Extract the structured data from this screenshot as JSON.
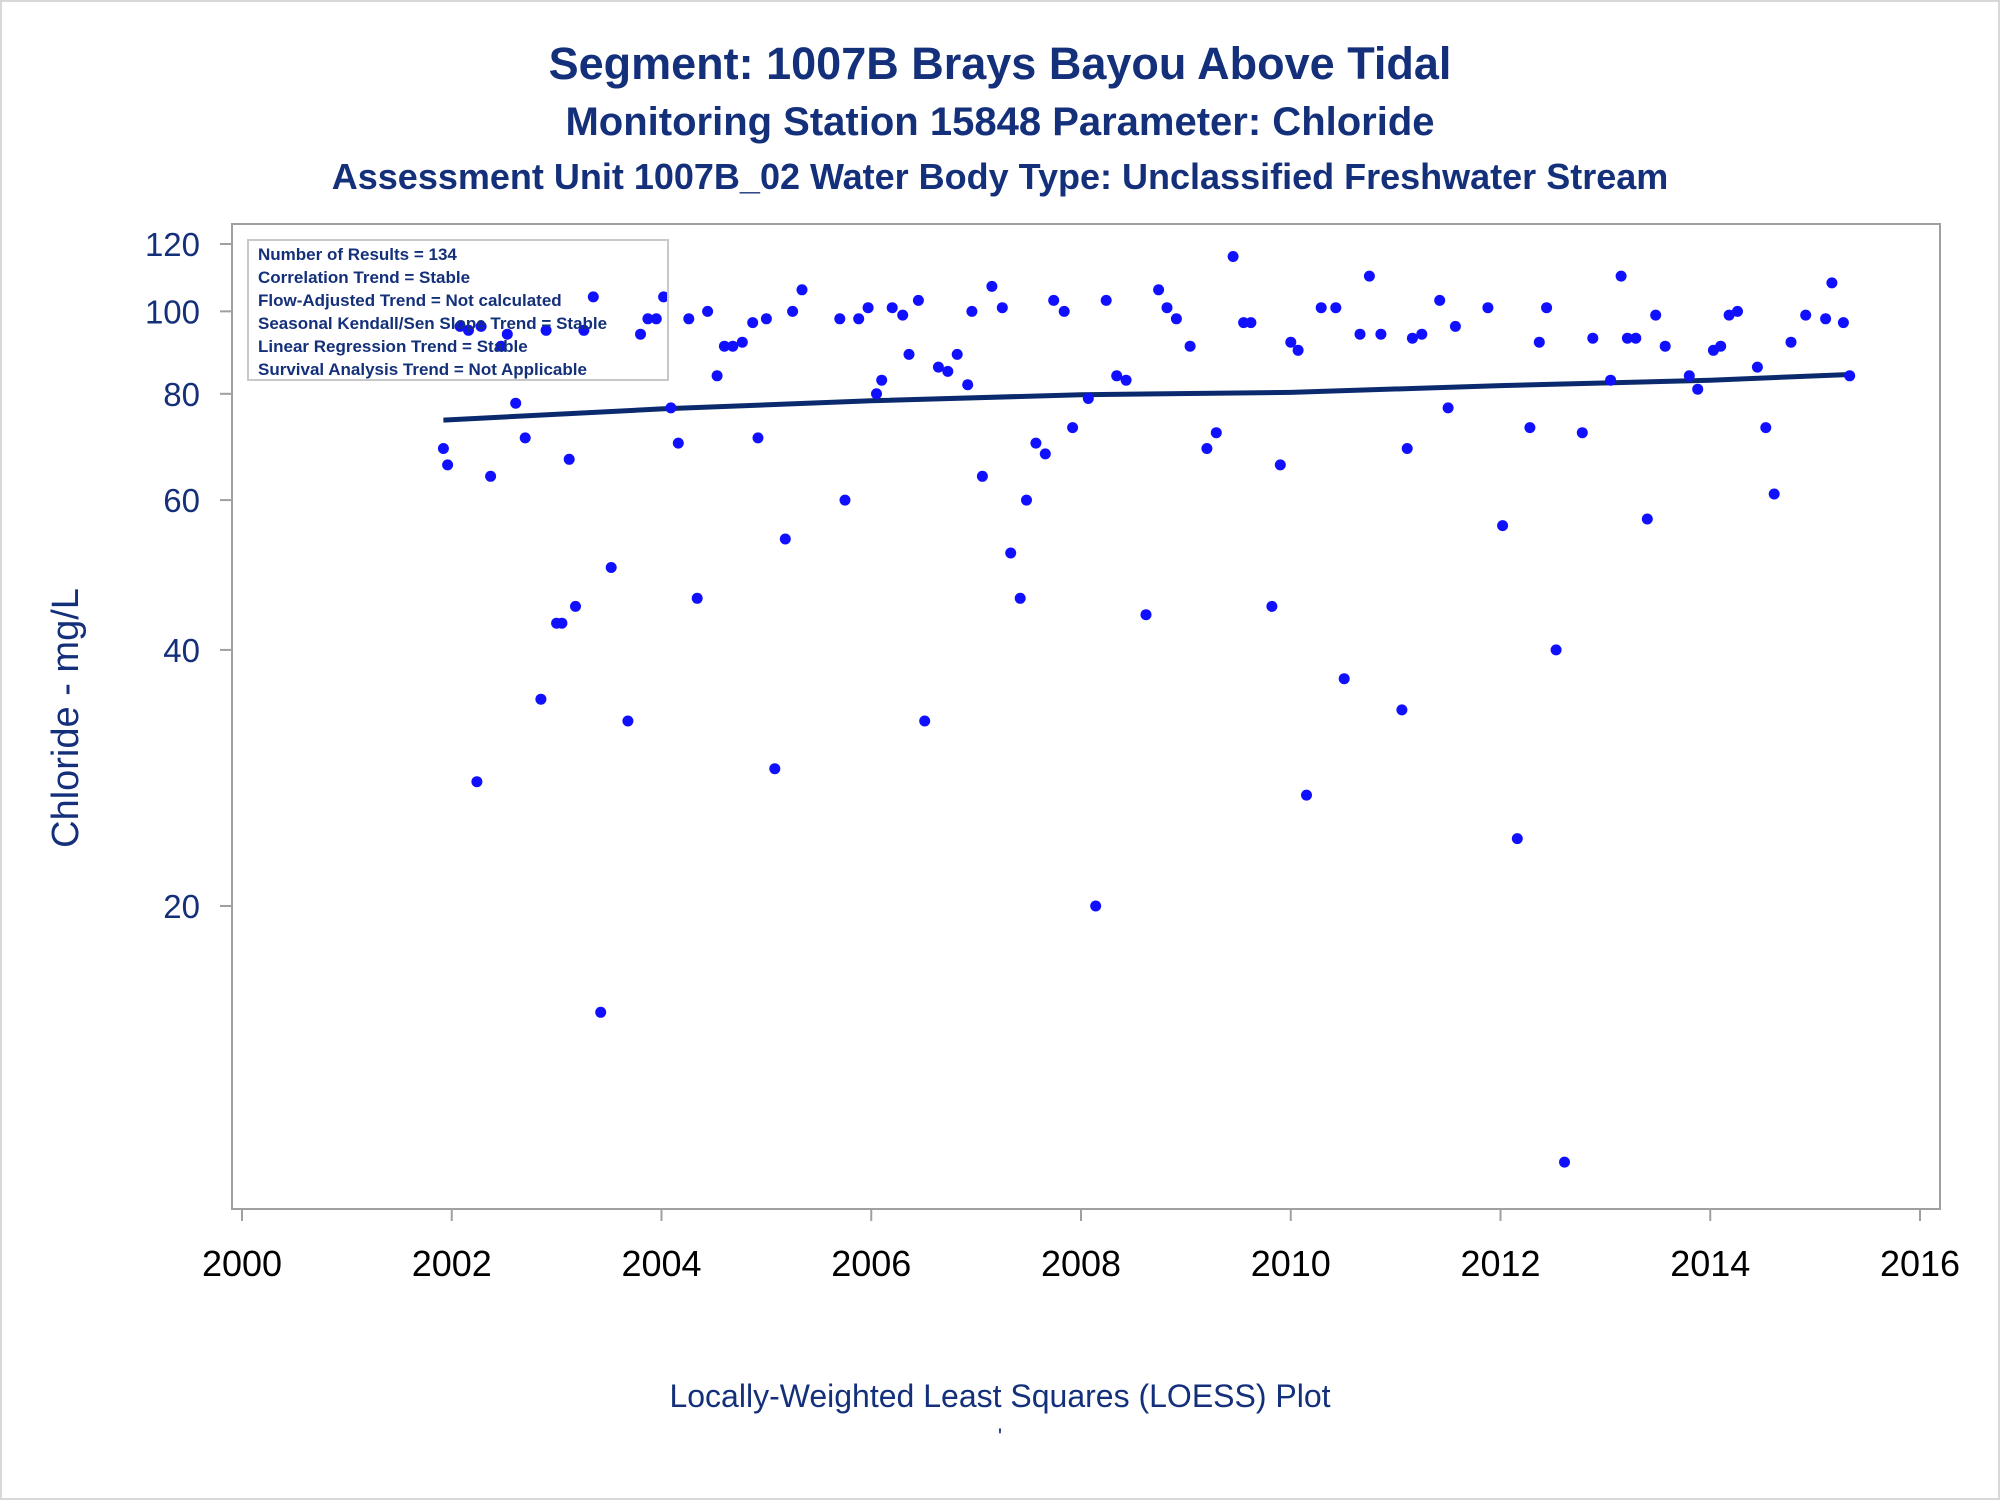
{
  "titles": {
    "line1": "Segment: 1007B  Brays Bayou Above Tidal",
    "line2": "Monitoring Station 15848 Parameter: Chloride",
    "line3": "Assessment Unit 1007B_02   Water Body Type: Unclassified Freshwater Stream"
  },
  "footer": "Locally-Weighted Least Squares (LOESS) Plot",
  "footer_mark": "'",
  "stats": [
    "Number of Results = 134",
    "Correlation Trend = Stable",
    "Flow-Adjusted Trend = Not calculated",
    "Seasonal Kendall/Sen Slope Trend = Stable",
    "Linear Regression Trend = Stable",
    "Survival Analysis Trend = Not Applicable"
  ],
  "colors": {
    "points": "#1010ff",
    "trend": "#0b2a6e",
    "text": "#14307a",
    "axis": "#a0a0a0"
  },
  "chart_data": {
    "type": "scatter",
    "ylabel": "Chloride - mg/L",
    "xlabel": "",
    "xlim": [
      2000,
      2016
    ],
    "ylim": [
      10,
      125
    ],
    "yscale": "log",
    "xticks": [
      2000,
      2002,
      2004,
      2006,
      2008,
      2010,
      2012,
      2014,
      2016
    ],
    "yticks": [
      20,
      40,
      60,
      80,
      100,
      120
    ],
    "grid": false,
    "legend": "top-left",
    "points": [
      [
        2001.92,
        69
      ],
      [
        2001.96,
        66
      ],
      [
        2002.08,
        96
      ],
      [
        2002.16,
        95
      ],
      [
        2002.24,
        28
      ],
      [
        2002.28,
        96
      ],
      [
        2002.37,
        64
      ],
      [
        2002.47,
        91
      ],
      [
        2002.53,
        94
      ],
      [
        2002.61,
        78
      ],
      [
        2002.7,
        71
      ],
      [
        2002.85,
        35
      ],
      [
        2002.9,
        95
      ],
      [
        2003.0,
        43
      ],
      [
        2003.05,
        43
      ],
      [
        2003.12,
        67
      ],
      [
        2003.18,
        45
      ],
      [
        2003.26,
        95
      ],
      [
        2003.35,
        104
      ],
      [
        2003.42,
        15
      ],
      [
        2003.52,
        50
      ],
      [
        2003.68,
        33
      ],
      [
        2003.8,
        94
      ],
      [
        2003.87,
        98
      ],
      [
        2003.95,
        98
      ],
      [
        2004.02,
        104
      ],
      [
        2004.09,
        77
      ],
      [
        2004.16,
        70
      ],
      [
        2004.26,
        98
      ],
      [
        2004.34,
        46
      ],
      [
        2004.44,
        100
      ],
      [
        2004.53,
        84
      ],
      [
        2004.6,
        91
      ],
      [
        2004.68,
        91
      ],
      [
        2004.77,
        92
      ],
      [
        2004.87,
        97
      ],
      [
        2004.92,
        71
      ],
      [
        2005.0,
        98
      ],
      [
        2005.08,
        29
      ],
      [
        2005.18,
        54
      ],
      [
        2005.25,
        100
      ],
      [
        2005.34,
        106
      ],
      [
        2005.7,
        98
      ],
      [
        2005.75,
        60
      ],
      [
        2005.88,
        98
      ],
      [
        2005.97,
        101
      ],
      [
        2006.05,
        80
      ],
      [
        2006.1,
        83
      ],
      [
        2006.2,
        101
      ],
      [
        2006.3,
        99
      ],
      [
        2006.36,
        89
      ],
      [
        2006.45,
        103
      ],
      [
        2006.51,
        33
      ],
      [
        2006.64,
        86
      ],
      [
        2006.73,
        85
      ],
      [
        2006.82,
        89
      ],
      [
        2006.92,
        82
      ],
      [
        2006.96,
        100
      ],
      [
        2007.06,
        64
      ],
      [
        2007.15,
        107
      ],
      [
        2007.25,
        101
      ],
      [
        2007.33,
        52
      ],
      [
        2007.42,
        46
      ],
      [
        2007.48,
        60
      ],
      [
        2007.57,
        70
      ],
      [
        2007.66,
        68
      ],
      [
        2007.74,
        103
      ],
      [
        2007.84,
        100
      ],
      [
        2007.92,
        73
      ],
      [
        2008.07,
        79
      ],
      [
        2008.14,
        20
      ],
      [
        2008.24,
        103
      ],
      [
        2008.34,
        84
      ],
      [
        2008.43,
        83
      ],
      [
        2008.62,
        44
      ],
      [
        2008.74,
        106
      ],
      [
        2008.82,
        101
      ],
      [
        2008.91,
        98
      ],
      [
        2009.04,
        91
      ],
      [
        2009.2,
        69
      ],
      [
        2009.29,
        72
      ],
      [
        2009.45,
        116
      ],
      [
        2009.55,
        97
      ],
      [
        2009.62,
        97
      ],
      [
        2009.82,
        45
      ],
      [
        2009.9,
        66
      ],
      [
        2010.0,
        92
      ],
      [
        2010.07,
        90
      ],
      [
        2010.15,
        27
      ],
      [
        2010.29,
        101
      ],
      [
        2010.43,
        101
      ],
      [
        2010.51,
        37
      ],
      [
        2010.66,
        94
      ],
      [
        2010.75,
        110
      ],
      [
        2010.86,
        94
      ],
      [
        2011.06,
        34
      ],
      [
        2011.11,
        69
      ],
      [
        2011.16,
        93
      ],
      [
        2011.25,
        94
      ],
      [
        2011.42,
        103
      ],
      [
        2011.5,
        77
      ],
      [
        2011.57,
        96
      ],
      [
        2011.88,
        101
      ],
      [
        2012.02,
        56
      ],
      [
        2012.16,
        24
      ],
      [
        2012.28,
        73
      ],
      [
        2012.37,
        92
      ],
      [
        2012.44,
        101
      ],
      [
        2012.53,
        40
      ],
      [
        2012.61,
        10
      ],
      [
        2012.78,
        72
      ],
      [
        2012.88,
        93
      ],
      [
        2013.05,
        83
      ],
      [
        2013.15,
        110
      ],
      [
        2013.21,
        93
      ],
      [
        2013.29,
        93
      ],
      [
        2013.4,
        57
      ],
      [
        2013.48,
        99
      ],
      [
        2013.57,
        91
      ],
      [
        2013.8,
        84
      ],
      [
        2013.88,
        81
      ],
      [
        2014.03,
        90
      ],
      [
        2014.1,
        91
      ],
      [
        2014.18,
        99
      ],
      [
        2014.26,
        100
      ],
      [
        2014.45,
        86
      ],
      [
        2014.53,
        73
      ],
      [
        2014.61,
        61
      ],
      [
        2014.77,
        92
      ],
      [
        2014.91,
        99
      ],
      [
        2015.1,
        98
      ],
      [
        2015.16,
        108
      ],
      [
        2015.27,
        97
      ],
      [
        2015.33,
        84
      ]
    ],
    "trend": [
      [
        2001.92,
        74.5
      ],
      [
        2004,
        76.8
      ],
      [
        2006,
        78.5
      ],
      [
        2008,
        79.8
      ],
      [
        2010,
        80.3
      ],
      [
        2012,
        81.8
      ],
      [
        2014,
        83.0
      ],
      [
        2015.33,
        84.3
      ]
    ]
  }
}
